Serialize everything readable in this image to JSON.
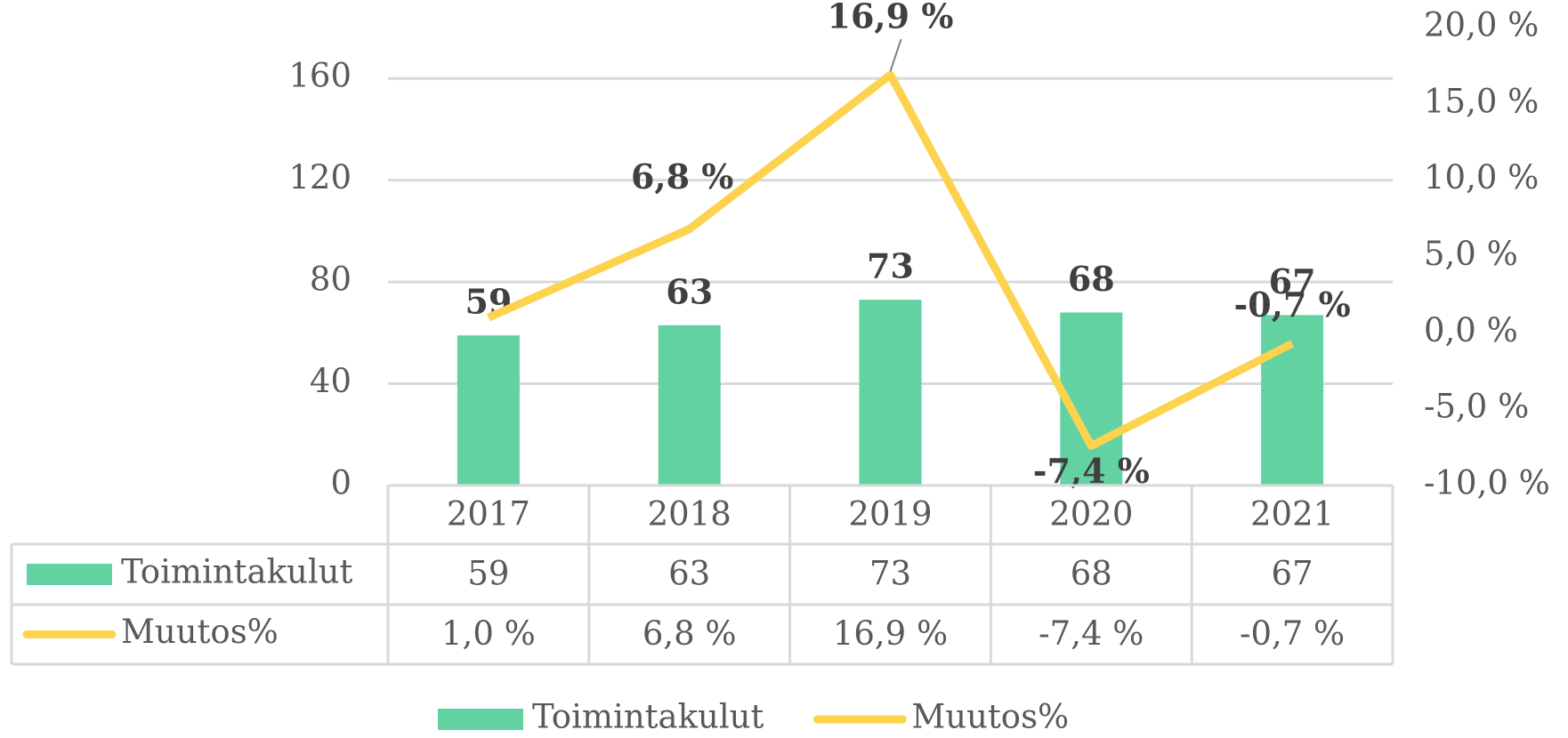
{
  "chart_data": {
    "type": "bar_line",
    "categories": [
      "2017",
      "2018",
      "2019",
      "2020",
      "2021"
    ],
    "series": [
      {
        "name": "Toimintakulut",
        "color": "#62d2a2",
        "type": "bar",
        "values": [
          59,
          63,
          73,
          68,
          67
        ]
      },
      {
        "name": "Muutos%",
        "color": "#fdd24e",
        "type": "line",
        "axis": "y2",
        "values": [
          1.0,
          6.8,
          16.9,
          -7.4,
          -0.7
        ],
        "value_labels": [
          "1,0 %",
          "6,8 %",
          "16,9 %",
          "-7,4 %",
          "-0,7 %"
        ]
      }
    ],
    "ylim": [
      0,
      180
    ],
    "yticks": [
      0,
      40,
      80,
      120,
      160
    ],
    "y2lim": [
      -10,
      20
    ],
    "y2ticks": [
      {
        "value": -10,
        "label": "-10,0 %"
      },
      {
        "value": -5,
        "label": "-5,0 %"
      },
      {
        "value": 0,
        "label": "0,0 %"
      },
      {
        "value": 5,
        "label": "5,0 %"
      },
      {
        "value": 10,
        "label": "10,0 %"
      },
      {
        "value": 15,
        "label": "15,0 %"
      },
      {
        "value": 20,
        "label": "20,0 %"
      }
    ],
    "grid": true,
    "legend": "bottom",
    "data_table": true
  }
}
